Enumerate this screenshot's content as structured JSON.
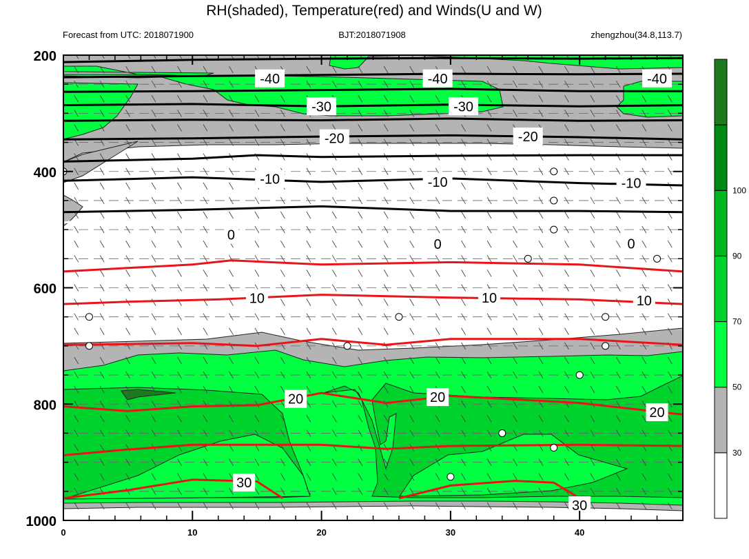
{
  "chart_data": {
    "type": "contour",
    "title": "RH(shaded), Temperature(red) and Winds(U and W)",
    "subtitle_left": "Forecast from UTC: 2018071900",
    "subtitle_center": "BJT:2018071908",
    "subtitle_right": "zhengzhou(34.8,113.7)",
    "x": {
      "range": [
        0,
        48
      ],
      "ticks": [
        0,
        10,
        20,
        30,
        40
      ],
      "tick_labels": [
        "0",
        "10",
        "20",
        "30",
        "40"
      ]
    },
    "y": {
      "range": [
        1000,
        200
      ],
      "ticks": [
        200,
        400,
        600,
        800,
        1000
      ],
      "tick_labels": [
        "200",
        "400",
        "600",
        "800",
        "1000"
      ]
    },
    "colorbar": {
      "levels": [
        30,
        50,
        70,
        90,
        100
      ],
      "level_labels": [
        "30",
        "50",
        "70",
        "90",
        "100"
      ],
      "colors": [
        "#ffffff",
        "#b4b4b4",
        "#00ff40",
        "#00d42c",
        "#00b81e",
        "#008a14",
        "#1f7a1f"
      ]
    },
    "temperature_labels": [
      {
        "text": "-40",
        "x": 16,
        "p": 240
      },
      {
        "text": "-40",
        "x": 29,
        "p": 240
      },
      {
        "text": "-40",
        "x": 46,
        "p": 240
      },
      {
        "text": "-30",
        "x": 20,
        "p": 288
      },
      {
        "text": "-30",
        "x": 31,
        "p": 288
      },
      {
        "text": "-20",
        "x": 21,
        "p": 343
      },
      {
        "text": "-20",
        "x": 36,
        "p": 340
      },
      {
        "text": "-10",
        "x": 16,
        "p": 413
      },
      {
        "text": "-10",
        "x": 29,
        "p": 418
      },
      {
        "text": "-10",
        "x": 44,
        "p": 420
      },
      {
        "text": "0",
        "x": 13,
        "p": 509
      },
      {
        "text": "0",
        "x": 29,
        "p": 525
      },
      {
        "text": "0",
        "x": 44,
        "p": 524
      },
      {
        "text": "10",
        "x": 15,
        "p": 618
      },
      {
        "text": "10",
        "x": 33,
        "p": 617
      },
      {
        "text": "10",
        "x": 45,
        "p": 622
      },
      {
        "text": "20",
        "x": 18,
        "p": 791
      },
      {
        "text": "20",
        "x": 29,
        "p": 788
      },
      {
        "text": "20",
        "x": 46,
        "p": 814
      },
      {
        "text": "30",
        "x": 14,
        "p": 935
      },
      {
        "text": "30",
        "x": 40,
        "p": 974
      }
    ]
  }
}
